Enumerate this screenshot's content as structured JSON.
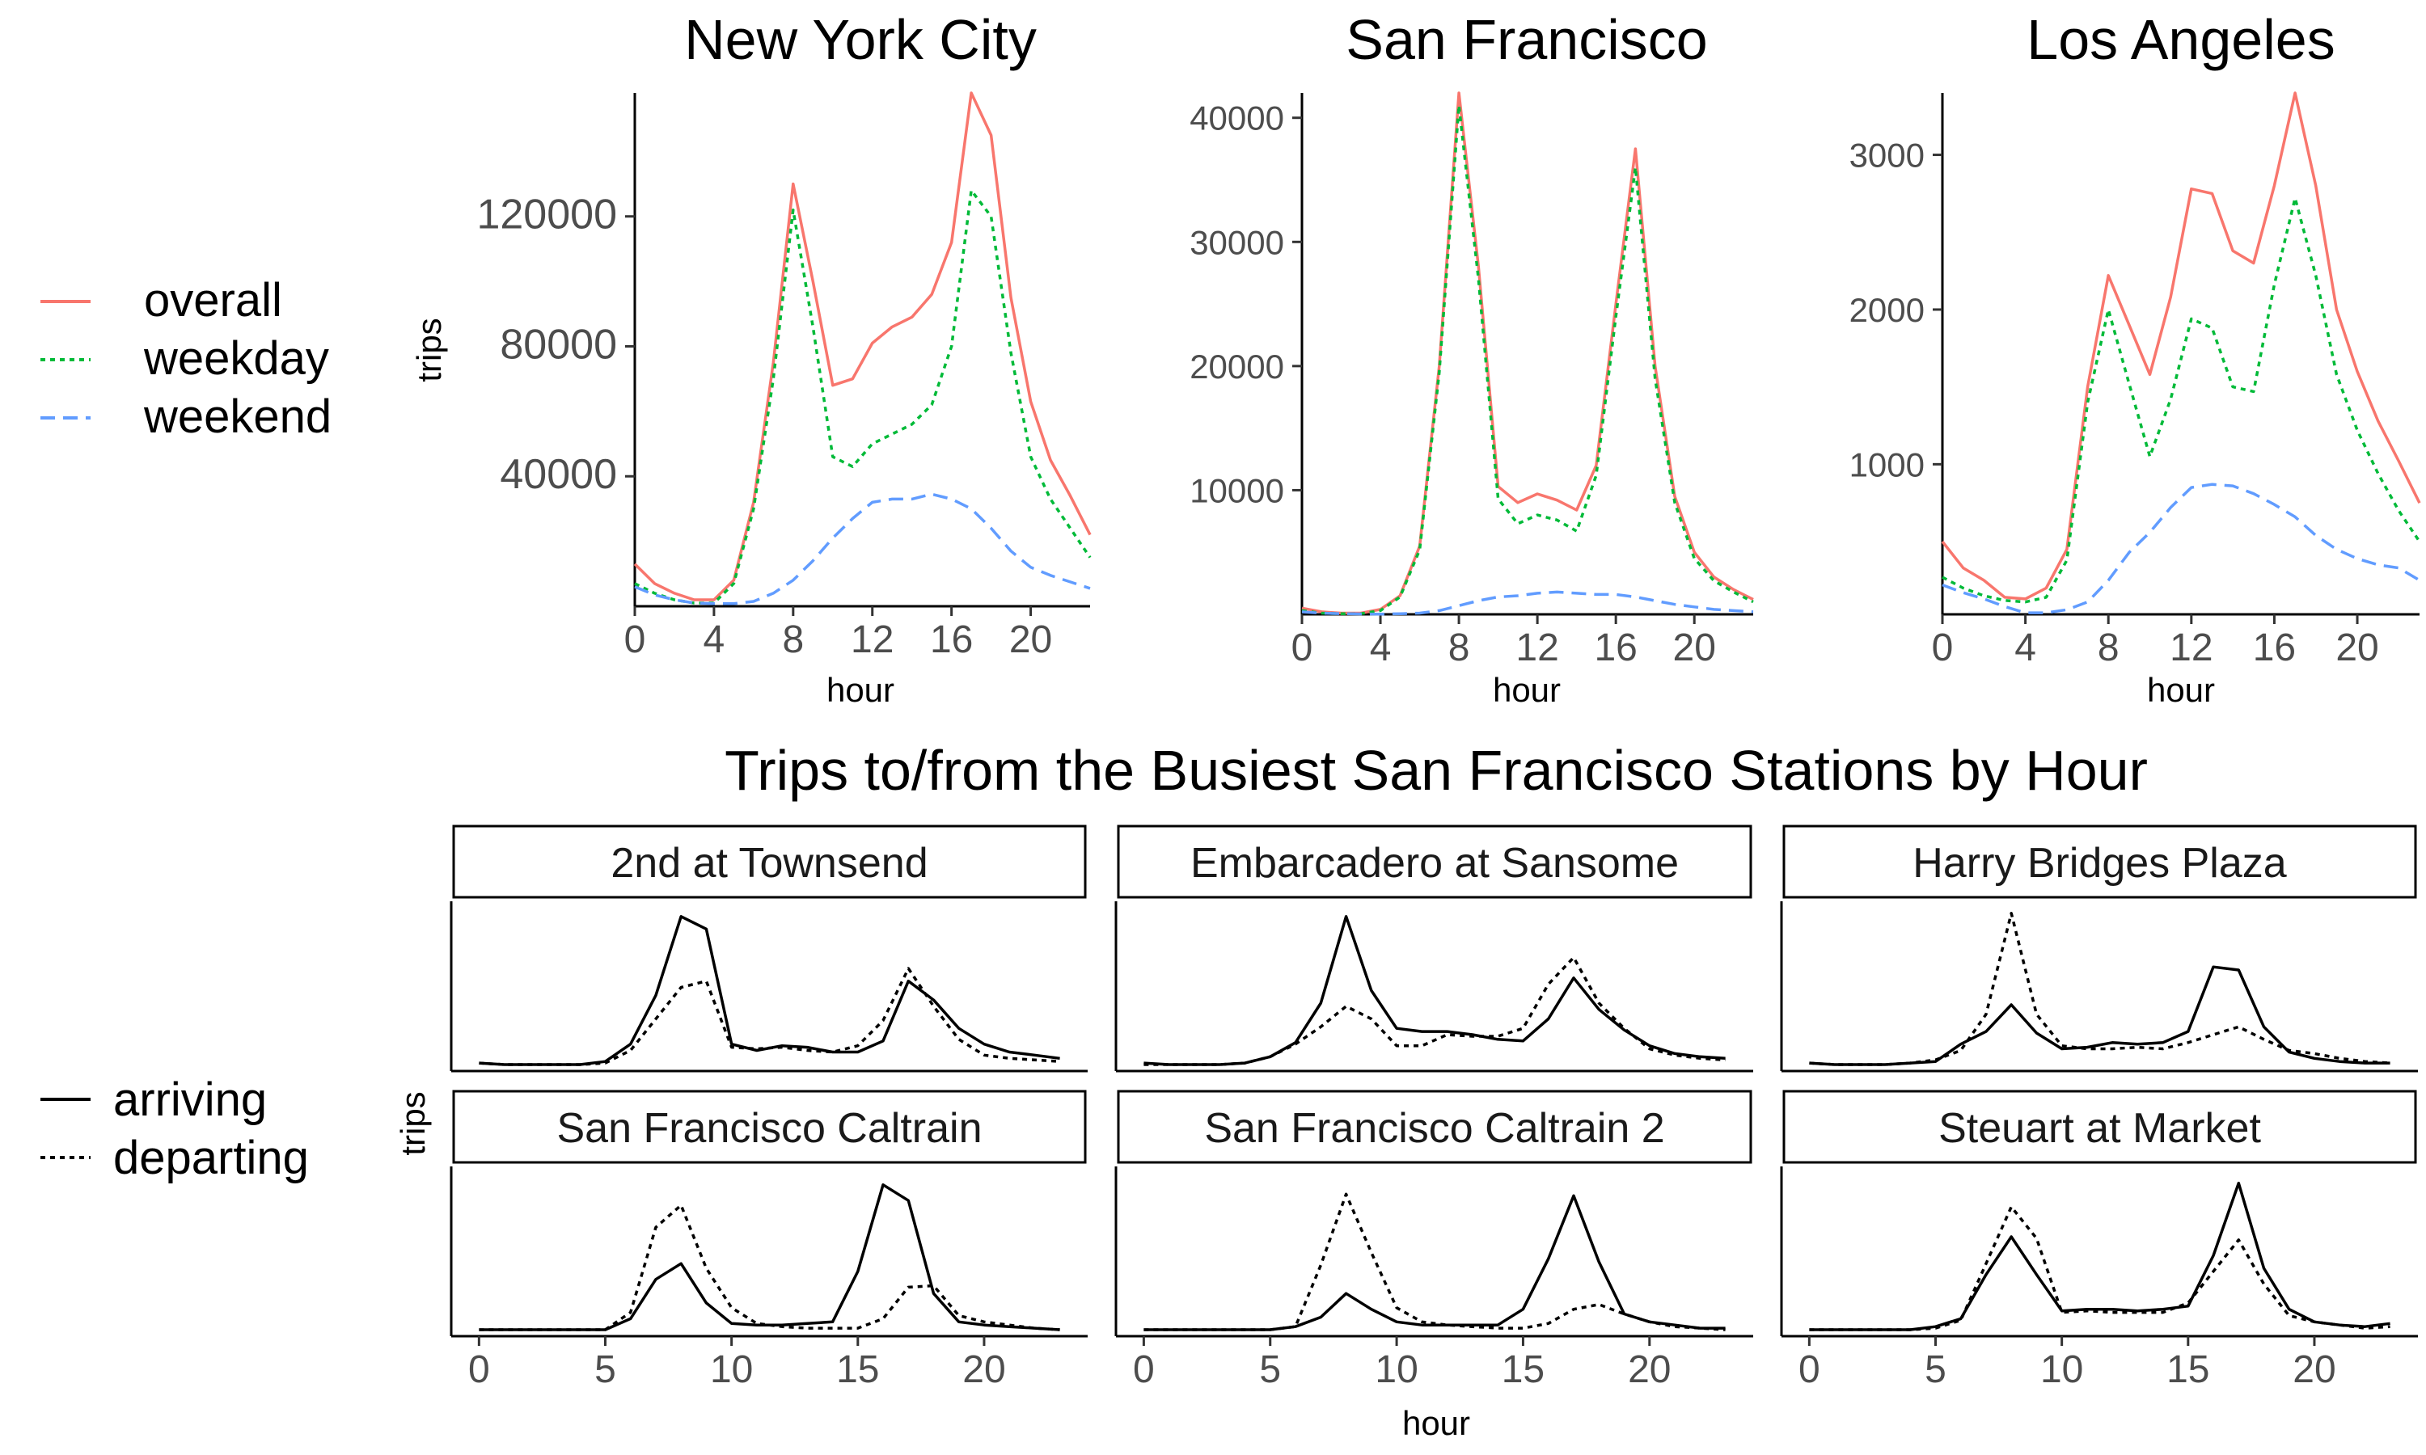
{
  "chart_data": [
    {
      "type": "line",
      "title": "New York City",
      "xlabel": "hour",
      "ylabel": "trips",
      "xlim": [
        0,
        23
      ],
      "ylim": [
        0,
        158000
      ],
      "x_ticks": [
        0,
        4,
        8,
        12,
        16,
        20
      ],
      "y_ticks": [
        40000,
        80000,
        120000
      ],
      "x": [
        0,
        1,
        2,
        3,
        4,
        5,
        6,
        7,
        8,
        9,
        10,
        11,
        12,
        13,
        14,
        15,
        16,
        17,
        18,
        19,
        20,
        21,
        22,
        23
      ],
      "series": [
        {
          "name": "overall",
          "color": "#F8766D",
          "dash": "solid",
          "values": [
            13000,
            7000,
            4000,
            2000,
            2000,
            8000,
            32000,
            75000,
            130000,
            100000,
            68000,
            70000,
            81000,
            86000,
            89000,
            96000,
            112000,
            158000,
            145000,
            95000,
            63000,
            45000,
            34000,
            22000
          ]
        },
        {
          "name": "weekday",
          "color": "#00BA38",
          "dash": "dotted",
          "values": [
            7000,
            4000,
            2000,
            1000,
            1000,
            7000,
            30000,
            70000,
            122000,
            86000,
            46000,
            43000,
            50000,
            53000,
            56000,
            62000,
            80000,
            128000,
            120000,
            78000,
            46000,
            33000,
            24000,
            15000
          ]
        },
        {
          "name": "weekend",
          "color": "#619CFF",
          "dash": "dashed",
          "values": [
            6000,
            3500,
            2000,
            1000,
            800,
            800,
            1500,
            4000,
            8000,
            14000,
            21000,
            27000,
            32000,
            33000,
            33000,
            34500,
            33000,
            30000,
            24000,
            17000,
            12000,
            9500,
            7500,
            5500
          ]
        }
      ]
    },
    {
      "type": "line",
      "title": "San Francisco",
      "xlabel": "hour",
      "ylabel": "",
      "xlim": [
        0,
        23
      ],
      "ylim": [
        0,
        42000
      ],
      "x_ticks": [
        0,
        4,
        8,
        12,
        16,
        20
      ],
      "y_ticks": [
        10000,
        20000,
        30000,
        40000
      ],
      "x": [
        0,
        1,
        2,
        3,
        4,
        5,
        6,
        7,
        8,
        9,
        10,
        11,
        12,
        13,
        14,
        15,
        16,
        17,
        18,
        19,
        20,
        21,
        22,
        23
      ],
      "series": [
        {
          "name": "overall",
          "color": "#F8766D",
          "dash": "solid",
          "values": [
            500,
            200,
            100,
            100,
            400,
            1500,
            5500,
            20000,
            42000,
            28000,
            10300,
            9000,
            9700,
            9200,
            8400,
            12000,
            25000,
            37500,
            20000,
            9500,
            5000,
            3000,
            2000,
            1200
          ]
        },
        {
          "name": "weekday",
          "color": "#00BA38",
          "dash": "dotted",
          "values": [
            300,
            100,
            50,
            50,
            300,
            1400,
            5200,
            19500,
            41000,
            27000,
            9300,
            7300,
            8000,
            7600,
            6700,
            11200,
            24000,
            36000,
            19000,
            9000,
            4500,
            2700,
            1800,
            1000
          ]
        },
        {
          "name": "weekend",
          "color": "#619CFF",
          "dash": "dashed",
          "values": [
            200,
            100,
            50,
            30,
            20,
            50,
            100,
            300,
            700,
            1100,
            1400,
            1500,
            1700,
            1800,
            1700,
            1600,
            1600,
            1400,
            1100,
            800,
            600,
            400,
            300,
            200
          ]
        }
      ]
    },
    {
      "type": "line",
      "title": "Los Angeles",
      "xlabel": "hour",
      "ylabel": "",
      "xlim": [
        0,
        23
      ],
      "ylim": [
        30,
        3400
      ],
      "x_ticks": [
        0,
        4,
        8,
        12,
        16,
        20
      ],
      "y_ticks": [
        1000,
        2000,
        3000
      ],
      "x": [
        0,
        1,
        2,
        3,
        4,
        5,
        6,
        7,
        8,
        9,
        10,
        11,
        12,
        13,
        14,
        15,
        16,
        17,
        18,
        19,
        20,
        21,
        22,
        23
      ],
      "series": [
        {
          "name": "overall",
          "color": "#F8766D",
          "dash": "solid",
          "values": [
            500,
            330,
            250,
            140,
            130,
            200,
            450,
            1500,
            2220,
            1900,
            1580,
            2080,
            2780,
            2750,
            2380,
            2300,
            2800,
            3400,
            2800,
            2000,
            1600,
            1280,
            1020,
            750
          ]
        },
        {
          "name": "weekday",
          "color": "#00BA38",
          "dash": "dotted",
          "values": [
            270,
            200,
            150,
            120,
            110,
            140,
            380,
            1400,
            2000,
            1520,
            1050,
            1420,
            1940,
            1880,
            1500,
            1470,
            2160,
            2720,
            2220,
            1580,
            1220,
            940,
            700,
            500
          ]
        },
        {
          "name": "weekend",
          "color": "#619CFF",
          "dash": "dashed",
          "values": [
            220,
            170,
            130,
            80,
            40,
            40,
            60,
            110,
            250,
            430,
            560,
            720,
            850,
            870,
            860,
            810,
            740,
            660,
            540,
            450,
            390,
            350,
            330,
            250
          ]
        }
      ]
    },
    {
      "type": "line",
      "title": "Trips to/from the Busiest San Francisco Stations by Hour",
      "xlabel": "hour",
      "ylabel": "trips",
      "xlim": [
        0,
        23
      ],
      "ylim": [
        0,
        100
      ],
      "x_ticks": [
        0,
        5,
        10,
        15,
        20
      ],
      "facets": [
        {
          "name": "2nd at Townsend",
          "arriving": [
            2,
            1,
            1,
            1,
            1,
            3,
            14,
            45,
            95,
            87,
            14,
            10,
            13,
            12,
            9,
            9,
            16,
            54,
            42,
            24,
            14,
            9,
            7,
            5
          ],
          "departing": [
            2,
            1,
            1,
            1,
            1,
            2,
            10,
            30,
            50,
            54,
            12,
            11,
            12,
            10,
            9,
            13,
            29,
            62,
            38,
            17,
            7,
            5,
            4,
            3
          ]
        },
        {
          "name": "Embarcadero at Sansome",
          "arriving": [
            2,
            1,
            1,
            1,
            2,
            6,
            15,
            40,
            95,
            48,
            24,
            22,
            22,
            20,
            17,
            16,
            30,
            56,
            36,
            23,
            13,
            8,
            6,
            5
          ],
          "departing": [
            1,
            1,
            1,
            1,
            2,
            6,
            14,
            25,
            38,
            30,
            13,
            13,
            20,
            19,
            19,
            24,
            52,
            69,
            40,
            24,
            11,
            7,
            5,
            4
          ]
        },
        {
          "name": "Harry Bridges Plaza",
          "arriving": [
            2,
            1,
            1,
            1,
            2,
            3,
            14,
            22,
            39,
            21,
            11,
            12,
            15,
            14,
            15,
            22,
            63,
            61,
            25,
            9,
            5,
            3,
            2,
            2
          ],
          "departing": [
            2,
            1,
            1,
            1,
            2,
            4,
            10,
            33,
            97,
            33,
            13,
            11,
            11,
            12,
            11,
            15,
            20,
            25,
            17,
            10,
            8,
            5,
            3,
            2
          ]
        },
        {
          "name": "San Francisco Caltrain",
          "arriving": [
            1,
            1,
            1,
            1,
            1,
            1,
            8,
            33,
            43,
            18,
            5,
            4,
            4,
            5,
            6,
            38,
            93,
            83,
            24,
            6,
            4,
            3,
            2,
            1
          ],
          "departing": [
            1,
            1,
            1,
            1,
            1,
            1,
            12,
            66,
            80,
            40,
            15,
            5,
            3,
            2,
            2,
            2,
            8,
            28,
            29,
            10,
            6,
            4,
            2,
            1
          ]
        },
        {
          "name": "San Francisco Caltrain 2",
          "arriving": [
            1,
            1,
            1,
            1,
            1,
            1,
            3,
            9,
            24,
            14,
            6,
            4,
            4,
            4,
            4,
            14,
            46,
            86,
            44,
            11,
            6,
            4,
            2,
            2
          ],
          "departing": [
            1,
            1,
            1,
            1,
            1,
            1,
            3,
            42,
            87,
            50,
            15,
            6,
            4,
            3,
            2,
            2,
            5,
            14,
            17,
            11,
            6,
            3,
            2,
            1
          ]
        },
        {
          "name": "Steuart at Market",
          "arriving": [
            1,
            1,
            1,
            1,
            1,
            3,
            8,
            36,
            60,
            36,
            13,
            14,
            14,
            13,
            14,
            16,
            48,
            94,
            40,
            14,
            6,
            4,
            3,
            5
          ],
          "departing": [
            1,
            1,
            1,
            1,
            1,
            2,
            7,
            43,
            79,
            59,
            12,
            13,
            12,
            12,
            12,
            18,
            38,
            58,
            30,
            10,
            6,
            4,
            2,
            3
          ]
        }
      ],
      "legend": [
        {
          "name": "arriving",
          "dash": "solid"
        },
        {
          "name": "departing",
          "dash": "dotted"
        }
      ]
    }
  ]
}
